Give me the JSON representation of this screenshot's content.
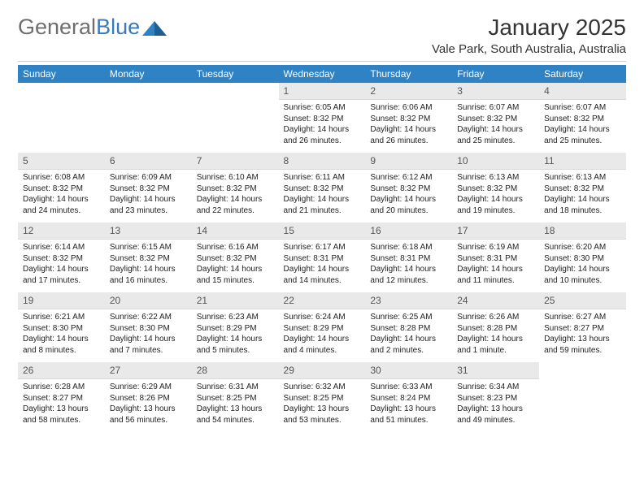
{
  "logo": {
    "part1": "General",
    "part2": "Blue"
  },
  "title": "January 2025",
  "location": "Vale Park, South Australia, Australia",
  "dayHeaders": [
    "Sunday",
    "Monday",
    "Tuesday",
    "Wednesday",
    "Thursday",
    "Friday",
    "Saturday"
  ],
  "colors": {
    "headerBg": "#2f83c5",
    "headerFg": "#ffffff",
    "dayNumBg": "#e9e9e9",
    "logoBlue": "#3a7ab8",
    "logoGray": "#6e6e6e",
    "text": "#222222"
  },
  "typography": {
    "titleSize": 28,
    "locationSize": 15,
    "thSize": 12,
    "daynumSize": 12,
    "bodySize": 10
  },
  "weeks": [
    [
      null,
      null,
      null,
      {
        "n": "1",
        "sunrise": "6:05 AM",
        "sunset": "8:32 PM",
        "daylight": "14 hours and 26 minutes."
      },
      {
        "n": "2",
        "sunrise": "6:06 AM",
        "sunset": "8:32 PM",
        "daylight": "14 hours and 26 minutes."
      },
      {
        "n": "3",
        "sunrise": "6:07 AM",
        "sunset": "8:32 PM",
        "daylight": "14 hours and 25 minutes."
      },
      {
        "n": "4",
        "sunrise": "6:07 AM",
        "sunset": "8:32 PM",
        "daylight": "14 hours and 25 minutes."
      }
    ],
    [
      {
        "n": "5",
        "sunrise": "6:08 AM",
        "sunset": "8:32 PM",
        "daylight": "14 hours and 24 minutes."
      },
      {
        "n": "6",
        "sunrise": "6:09 AM",
        "sunset": "8:32 PM",
        "daylight": "14 hours and 23 minutes."
      },
      {
        "n": "7",
        "sunrise": "6:10 AM",
        "sunset": "8:32 PM",
        "daylight": "14 hours and 22 minutes."
      },
      {
        "n": "8",
        "sunrise": "6:11 AM",
        "sunset": "8:32 PM",
        "daylight": "14 hours and 21 minutes."
      },
      {
        "n": "9",
        "sunrise": "6:12 AM",
        "sunset": "8:32 PM",
        "daylight": "14 hours and 20 minutes."
      },
      {
        "n": "10",
        "sunrise": "6:13 AM",
        "sunset": "8:32 PM",
        "daylight": "14 hours and 19 minutes."
      },
      {
        "n": "11",
        "sunrise": "6:13 AM",
        "sunset": "8:32 PM",
        "daylight": "14 hours and 18 minutes."
      }
    ],
    [
      {
        "n": "12",
        "sunrise": "6:14 AM",
        "sunset": "8:32 PM",
        "daylight": "14 hours and 17 minutes."
      },
      {
        "n": "13",
        "sunrise": "6:15 AM",
        "sunset": "8:32 PM",
        "daylight": "14 hours and 16 minutes."
      },
      {
        "n": "14",
        "sunrise": "6:16 AM",
        "sunset": "8:32 PM",
        "daylight": "14 hours and 15 minutes."
      },
      {
        "n": "15",
        "sunrise": "6:17 AM",
        "sunset": "8:31 PM",
        "daylight": "14 hours and 14 minutes."
      },
      {
        "n": "16",
        "sunrise": "6:18 AM",
        "sunset": "8:31 PM",
        "daylight": "14 hours and 12 minutes."
      },
      {
        "n": "17",
        "sunrise": "6:19 AM",
        "sunset": "8:31 PM",
        "daylight": "14 hours and 11 minutes."
      },
      {
        "n": "18",
        "sunrise": "6:20 AM",
        "sunset": "8:30 PM",
        "daylight": "14 hours and 10 minutes."
      }
    ],
    [
      {
        "n": "19",
        "sunrise": "6:21 AM",
        "sunset": "8:30 PM",
        "daylight": "14 hours and 8 minutes."
      },
      {
        "n": "20",
        "sunrise": "6:22 AM",
        "sunset": "8:30 PM",
        "daylight": "14 hours and 7 minutes."
      },
      {
        "n": "21",
        "sunrise": "6:23 AM",
        "sunset": "8:29 PM",
        "daylight": "14 hours and 5 minutes."
      },
      {
        "n": "22",
        "sunrise": "6:24 AM",
        "sunset": "8:29 PM",
        "daylight": "14 hours and 4 minutes."
      },
      {
        "n": "23",
        "sunrise": "6:25 AM",
        "sunset": "8:28 PM",
        "daylight": "14 hours and 2 minutes."
      },
      {
        "n": "24",
        "sunrise": "6:26 AM",
        "sunset": "8:28 PM",
        "daylight": "14 hours and 1 minute."
      },
      {
        "n": "25",
        "sunrise": "6:27 AM",
        "sunset": "8:27 PM",
        "daylight": "13 hours and 59 minutes."
      }
    ],
    [
      {
        "n": "26",
        "sunrise": "6:28 AM",
        "sunset": "8:27 PM",
        "daylight": "13 hours and 58 minutes."
      },
      {
        "n": "27",
        "sunrise": "6:29 AM",
        "sunset": "8:26 PM",
        "daylight": "13 hours and 56 minutes."
      },
      {
        "n": "28",
        "sunrise": "6:31 AM",
        "sunset": "8:25 PM",
        "daylight": "13 hours and 54 minutes."
      },
      {
        "n": "29",
        "sunrise": "6:32 AM",
        "sunset": "8:25 PM",
        "daylight": "13 hours and 53 minutes."
      },
      {
        "n": "30",
        "sunrise": "6:33 AM",
        "sunset": "8:24 PM",
        "daylight": "13 hours and 51 minutes."
      },
      {
        "n": "31",
        "sunrise": "6:34 AM",
        "sunset": "8:23 PM",
        "daylight": "13 hours and 49 minutes."
      },
      null
    ]
  ],
  "labels": {
    "sunrise": "Sunrise:",
    "sunset": "Sunset:",
    "daylight": "Daylight:"
  }
}
